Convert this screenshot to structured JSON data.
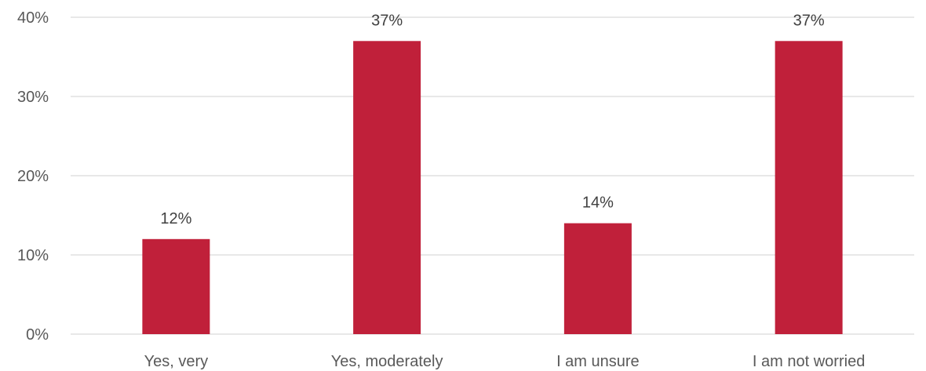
{
  "chart_data": {
    "type": "bar",
    "categories": [
      "Yes, very",
      "Yes, moderately",
      "I am unsure",
      "I am not worried"
    ],
    "values": [
      12,
      37,
      14,
      37
    ],
    "data_labels": [
      "12%",
      "37%",
      "14%",
      "37%"
    ],
    "ylim": [
      0,
      40
    ],
    "yticks": [
      0,
      10,
      20,
      30,
      40
    ],
    "ytick_labels": [
      "0%",
      "10%",
      "20%",
      "30%",
      "40%"
    ],
    "bar_color": "#c0203a",
    "grid": true,
    "legend": "none"
  }
}
